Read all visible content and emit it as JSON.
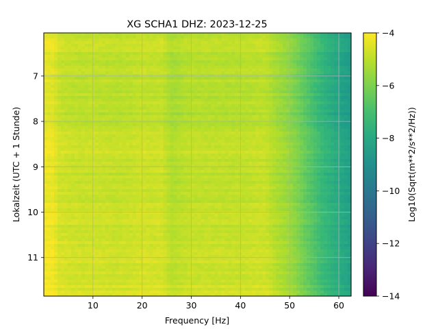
{
  "chart_data": {
    "type": "heatmap",
    "title": "XG SCHA1  DHZ: 2023-12-25",
    "xlabel": "Frequency [Hz]",
    "ylabel": "Lokalzeit (UTC + 1 Stunde)",
    "xlim": [
      0,
      62.5
    ],
    "ylim": [
      6.05,
      11.85
    ],
    "y_inverted": true,
    "x_ticks": [
      10,
      20,
      30,
      40,
      50,
      60
    ],
    "y_ticks": [
      7,
      8,
      9,
      10,
      11
    ],
    "grid": true,
    "colorbar": {
      "label": "Log10(Sqrt(m**2/s**2/Hz))",
      "range": [
        -14,
        -4
      ],
      "ticks": [
        -4,
        -6,
        -8,
        -10,
        -12,
        -14
      ],
      "colormap": "viridis"
    },
    "frequency_profile": {
      "x": [
        0,
        2,
        3,
        5,
        8,
        10,
        12,
        15,
        18,
        20,
        22,
        24,
        26,
        28,
        30,
        35,
        40,
        45,
        47,
        50,
        52,
        55,
        57,
        60,
        62.5
      ],
      "values": [
        -4.3,
        -4.3,
        -4.7,
        -4.8,
        -4.85,
        -4.8,
        -4.85,
        -4.9,
        -4.85,
        -4.75,
        -4.8,
        -4.75,
        -5.2,
        -5.05,
        -4.95,
        -4.95,
        -4.95,
        -4.85,
        -5.2,
        -5.6,
        -6.1,
        -6.9,
        -7.4,
        -8.0,
        -8.4
      ]
    },
    "time_offset": {
      "t": [
        6.05,
        7.0,
        8.0,
        8.6,
        9.0,
        10.0,
        11.0,
        11.85
      ],
      "values": [
        0.0,
        -0.15,
        -0.25,
        0.2,
        -0.05,
        0.05,
        0.15,
        0.3
      ]
    }
  }
}
